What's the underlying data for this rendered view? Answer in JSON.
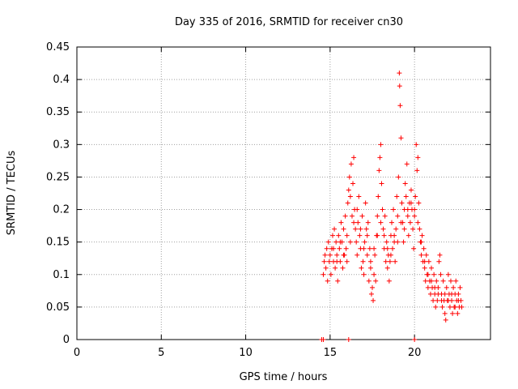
{
  "chart_data": {
    "type": "scatter",
    "title": "Day 335 of 2016, SRMTID for receiver cn30",
    "xlabel": "GPS time / hours",
    "ylabel": "SRMTID / TECUs",
    "xlim": [
      0,
      24.5
    ],
    "ylim": [
      0,
      0.45
    ],
    "xticks": [
      0,
      5,
      10,
      15,
      20
    ],
    "xtick_labels": [
      "0",
      "5",
      "10",
      "15",
      "20"
    ],
    "yticks": [
      0,
      0.05,
      0.1,
      0.15,
      0.2,
      0.25,
      0.3,
      0.35,
      0.4,
      0.45
    ],
    "ytick_labels": [
      "0",
      "0.05",
      "0.1",
      "0.15",
      "0.2",
      "0.25",
      "0.3",
      "0.35",
      "0.4",
      "0.45"
    ],
    "grid": true,
    "marker": "+",
    "color": "#ff0000",
    "series": [
      {
        "name": "SRMTID",
        "points": [
          [
            14.5,
            0.0
          ],
          [
            14.6,
            0.0
          ],
          [
            16.1,
            0.0
          ],
          [
            20.0,
            0.0
          ],
          [
            14.6,
            0.1
          ],
          [
            14.65,
            0.12
          ],
          [
            14.7,
            0.13
          ],
          [
            14.75,
            0.11
          ],
          [
            14.8,
            0.14
          ],
          [
            14.85,
            0.09
          ],
          [
            14.9,
            0.15
          ],
          [
            14.95,
            0.12
          ],
          [
            15.0,
            0.13
          ],
          [
            15.05,
            0.1
          ],
          [
            15.1,
            0.14
          ],
          [
            15.15,
            0.16
          ],
          [
            15.2,
            0.12
          ],
          [
            15.25,
            0.17
          ],
          [
            15.3,
            0.11
          ],
          [
            15.35,
            0.15
          ],
          [
            15.4,
            0.13
          ],
          [
            15.45,
            0.09
          ],
          [
            15.5,
            0.16
          ],
          [
            15.55,
            0.14
          ],
          [
            15.6,
            0.12
          ],
          [
            15.65,
            0.18
          ],
          [
            15.7,
            0.15
          ],
          [
            15.75,
            0.11
          ],
          [
            15.8,
            0.17
          ],
          [
            15.85,
            0.13
          ],
          [
            15.9,
            0.19
          ],
          [
            15.95,
            0.14
          ],
          [
            16.0,
            0.16
          ],
          [
            16.05,
            0.21
          ],
          [
            16.1,
            0.23
          ],
          [
            16.15,
            0.25
          ],
          [
            16.2,
            0.22
          ],
          [
            16.25,
            0.27
          ],
          [
            16.3,
            0.19
          ],
          [
            16.35,
            0.24
          ],
          [
            16.4,
            0.28
          ],
          [
            16.45,
            0.2
          ],
          [
            16.5,
            0.17
          ],
          [
            16.55,
            0.15
          ],
          [
            16.6,
            0.13
          ],
          [
            16.65,
            0.18
          ],
          [
            16.7,
            0.22
          ],
          [
            16.75,
            0.16
          ],
          [
            16.8,
            0.14
          ],
          [
            16.85,
            0.11
          ],
          [
            16.9,
            0.19
          ],
          [
            16.95,
            0.12
          ],
          [
            17.0,
            0.1
          ],
          [
            17.05,
            0.15
          ],
          [
            17.1,
            0.21
          ],
          [
            17.15,
            0.17
          ],
          [
            17.2,
            0.13
          ],
          [
            17.25,
            0.18
          ],
          [
            17.3,
            0.09
          ],
          [
            17.35,
            0.14
          ],
          [
            17.4,
            0.11
          ],
          [
            17.45,
            0.07
          ],
          [
            17.5,
            0.08
          ],
          [
            17.55,
            0.06
          ],
          [
            17.6,
            0.1
          ],
          [
            17.65,
            0.13
          ],
          [
            17.7,
            0.09
          ],
          [
            17.75,
            0.16
          ],
          [
            17.8,
            0.19
          ],
          [
            17.85,
            0.22
          ],
          [
            17.9,
            0.26
          ],
          [
            17.95,
            0.28
          ],
          [
            18.0,
            0.3
          ],
          [
            18.05,
            0.24
          ],
          [
            18.1,
            0.2
          ],
          [
            18.15,
            0.17
          ],
          [
            18.2,
            0.14
          ],
          [
            18.25,
            0.19
          ],
          [
            18.3,
            0.12
          ],
          [
            18.35,
            0.15
          ],
          [
            18.4,
            0.11
          ],
          [
            18.45,
            0.13
          ],
          [
            18.5,
            0.09
          ],
          [
            18.55,
            0.12
          ],
          [
            18.6,
            0.16
          ],
          [
            18.65,
            0.18
          ],
          [
            18.7,
            0.14
          ],
          [
            18.75,
            0.2
          ],
          [
            18.8,
            0.15
          ],
          [
            18.85,
            0.12
          ],
          [
            18.9,
            0.17
          ],
          [
            18.95,
            0.22
          ],
          [
            19.0,
            0.19
          ],
          [
            19.05,
            0.25
          ],
          [
            19.1,
            0.41
          ],
          [
            19.12,
            0.39
          ],
          [
            19.15,
            0.36
          ],
          [
            19.2,
            0.31
          ],
          [
            19.25,
            0.21
          ],
          [
            19.3,
            0.18
          ],
          [
            19.35,
            0.15
          ],
          [
            19.4,
            0.2
          ],
          [
            19.45,
            0.24
          ],
          [
            19.5,
            0.22
          ],
          [
            19.55,
            0.27
          ],
          [
            19.6,
            0.19
          ],
          [
            19.65,
            0.16
          ],
          [
            19.7,
            0.21
          ],
          [
            19.75,
            0.18
          ],
          [
            19.8,
            0.23
          ],
          [
            19.85,
            0.2
          ],
          [
            19.9,
            0.17
          ],
          [
            19.95,
            0.14
          ],
          [
            20.0,
            0.19
          ],
          [
            20.05,
            0.22
          ],
          [
            20.1,
            0.3
          ],
          [
            20.15,
            0.26
          ],
          [
            20.2,
            0.28
          ],
          [
            20.25,
            0.21
          ],
          [
            20.3,
            0.17
          ],
          [
            20.35,
            0.15
          ],
          [
            20.4,
            0.13
          ],
          [
            20.45,
            0.16
          ],
          [
            20.5,
            0.12
          ],
          [
            20.55,
            0.14
          ],
          [
            20.6,
            0.11
          ],
          [
            20.65,
            0.09
          ],
          [
            20.7,
            0.13
          ],
          [
            20.75,
            0.1
          ],
          [
            20.8,
            0.08
          ],
          [
            20.85,
            0.12
          ],
          [
            20.9,
            0.09
          ],
          [
            20.95,
            0.07
          ],
          [
            21.0,
            0.11
          ],
          [
            21.05,
            0.08
          ],
          [
            21.1,
            0.06
          ],
          [
            21.15,
            0.1
          ],
          [
            21.2,
            0.07
          ],
          [
            21.25,
            0.05
          ],
          [
            21.3,
            0.09
          ],
          [
            21.35,
            0.06
          ],
          [
            21.4,
            0.08
          ],
          [
            21.45,
            0.12
          ],
          [
            21.5,
            0.13
          ],
          [
            21.55,
            0.1
          ],
          [
            21.6,
            0.07
          ],
          [
            21.65,
            0.05
          ],
          [
            21.7,
            0.09
          ],
          [
            21.75,
            0.06
          ],
          [
            21.8,
            0.04
          ],
          [
            21.85,
            0.03
          ],
          [
            21.9,
            0.08
          ],
          [
            21.95,
            0.06
          ],
          [
            22.0,
            0.1
          ],
          [
            22.05,
            0.07
          ],
          [
            22.1,
            0.05
          ],
          [
            22.15,
            0.09
          ],
          [
            22.2,
            0.06
          ],
          [
            22.25,
            0.04
          ],
          [
            22.3,
            0.08
          ],
          [
            22.35,
            0.05
          ],
          [
            22.4,
            0.07
          ],
          [
            22.45,
            0.09
          ],
          [
            22.5,
            0.06
          ],
          [
            22.55,
            0.04
          ],
          [
            22.6,
            0.07
          ],
          [
            22.65,
            0.05
          ],
          [
            22.7,
            0.08
          ],
          [
            22.75,
            0.06
          ],
          [
            22.8,
            0.05
          ],
          [
            15.2,
            0.14
          ],
          [
            15.4,
            0.12
          ],
          [
            15.6,
            0.15
          ],
          [
            15.8,
            0.13
          ],
          [
            16.0,
            0.12
          ],
          [
            16.2,
            0.15
          ],
          [
            16.4,
            0.18
          ],
          [
            16.6,
            0.2
          ],
          [
            16.8,
            0.17
          ],
          [
            17.0,
            0.14
          ],
          [
            17.2,
            0.16
          ],
          [
            17.4,
            0.12
          ],
          [
            17.6,
            0.14
          ],
          [
            17.8,
            0.16
          ],
          [
            18.0,
            0.18
          ],
          [
            18.2,
            0.16
          ],
          [
            18.4,
            0.14
          ],
          [
            18.6,
            0.13
          ],
          [
            18.8,
            0.16
          ],
          [
            19.0,
            0.15
          ],
          [
            19.2,
            0.18
          ],
          [
            19.4,
            0.17
          ],
          [
            19.6,
            0.2
          ],
          [
            19.8,
            0.21
          ],
          [
            20.0,
            0.2
          ],
          [
            20.2,
            0.18
          ],
          [
            20.4,
            0.15
          ],
          [
            20.6,
            0.12
          ],
          [
            20.8,
            0.1
          ],
          [
            21.0,
            0.09
          ],
          [
            21.2,
            0.08
          ],
          [
            21.4,
            0.07
          ],
          [
            21.6,
            0.06
          ],
          [
            21.8,
            0.07
          ],
          [
            22.0,
            0.06
          ],
          [
            22.2,
            0.07
          ],
          [
            22.4,
            0.05
          ],
          [
            22.6,
            0.06
          ]
        ]
      }
    ]
  }
}
